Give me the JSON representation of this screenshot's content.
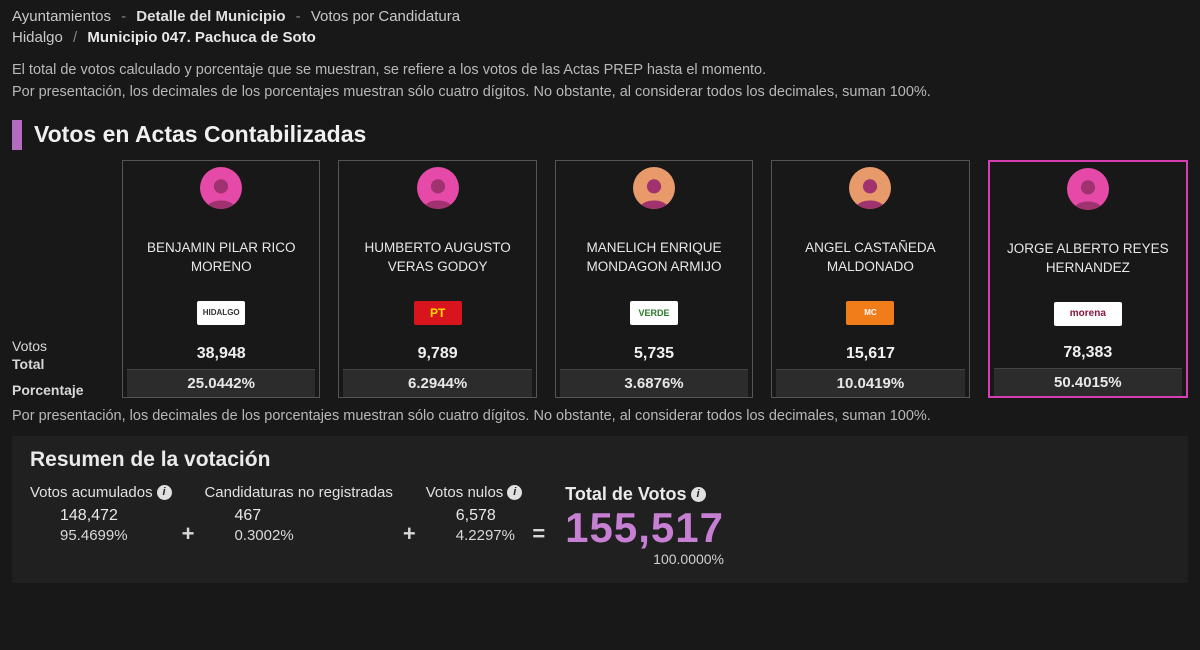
{
  "colors": {
    "background": "#181818",
    "text": "#c8c8c8",
    "text_light": "#e8e8e8",
    "accent": "#b46cc0",
    "winner_border": "#d63fb3",
    "avatar_pink": "#e64aa8",
    "avatar_dim": "#e89a6a",
    "total_value": "#c77fd4",
    "card_border": "#555555",
    "pct_row_bg": "#2c2c2c",
    "summary_bg": "#202020"
  },
  "breadcrumb": {
    "line1_a": "Ayuntamientos",
    "line1_b": "Detalle del Municipio",
    "line1_c": "Votos por Candidatura",
    "line2_a": "Hidalgo",
    "line2_b": "Municipio 047. Pachuca de Soto",
    "sep": "-",
    "slash": "/"
  },
  "intro": {
    "p1": "El total de votos calculado y porcentaje que se muestran, se refiere a los votos de las Actas PREP hasta el momento.",
    "p2": "Por presentación, los decimales de los porcentajes muestran sólo cuatro dígitos. No obstante, al considerar todos los decimales, suman 100%."
  },
  "section_title": "Votos en Actas Contabilizadas",
  "row_labels": {
    "votos": "Votos",
    "total": "Total",
    "porcentaje": "Porcentaje"
  },
  "candidates": [
    {
      "name": "BENJAMIN PILAR RICO MORENO",
      "party_code": "coal",
      "party_text": "HIDALGO",
      "votes": "38,948",
      "pct": "25.0442%",
      "winner": false,
      "dim": false
    },
    {
      "name": "HUMBERTO AUGUSTO VERAS GODOY",
      "party_code": "pt",
      "party_text": "PT",
      "votes": "9,789",
      "pct": "6.2944%",
      "winner": false,
      "dim": false
    },
    {
      "name": "MANELICH ENRIQUE MONDAGON ARMIJO",
      "party_code": "verde",
      "party_text": "VERDE",
      "votes": "5,735",
      "pct": "3.6876%",
      "winner": false,
      "dim": true
    },
    {
      "name": "ANGEL CASTAÑEDA MALDONADO",
      "party_code": "mc",
      "party_text": "MC",
      "votes": "15,617",
      "pct": "10.0419%",
      "winner": false,
      "dim": true
    },
    {
      "name": "JORGE ALBERTO REYES HERNANDEZ",
      "party_code": "morena",
      "party_text": "morena",
      "votes": "78,383",
      "pct": "50.4015%",
      "winner": true,
      "dim": false
    }
  ],
  "footnote": "Por presentación, los decimales de los porcentajes muestran sólo cuatro dígitos. No obstante, al considerar todos los decimales, suman 100%.",
  "summary": {
    "title": "Resumen de la votación",
    "acumulados": {
      "label": "Votos acumulados",
      "value": "148,472",
      "pct": "95.4699%"
    },
    "no_reg": {
      "label": "Candidaturas no registradas",
      "value": "467",
      "pct": "0.3002%"
    },
    "nulos": {
      "label": "Votos nulos",
      "value": "6,578",
      "pct": "4.2297%"
    },
    "plus": "+",
    "equals": "=",
    "total": {
      "label": "Total de Votos",
      "value": "155,517",
      "pct": "100.0000%"
    }
  }
}
